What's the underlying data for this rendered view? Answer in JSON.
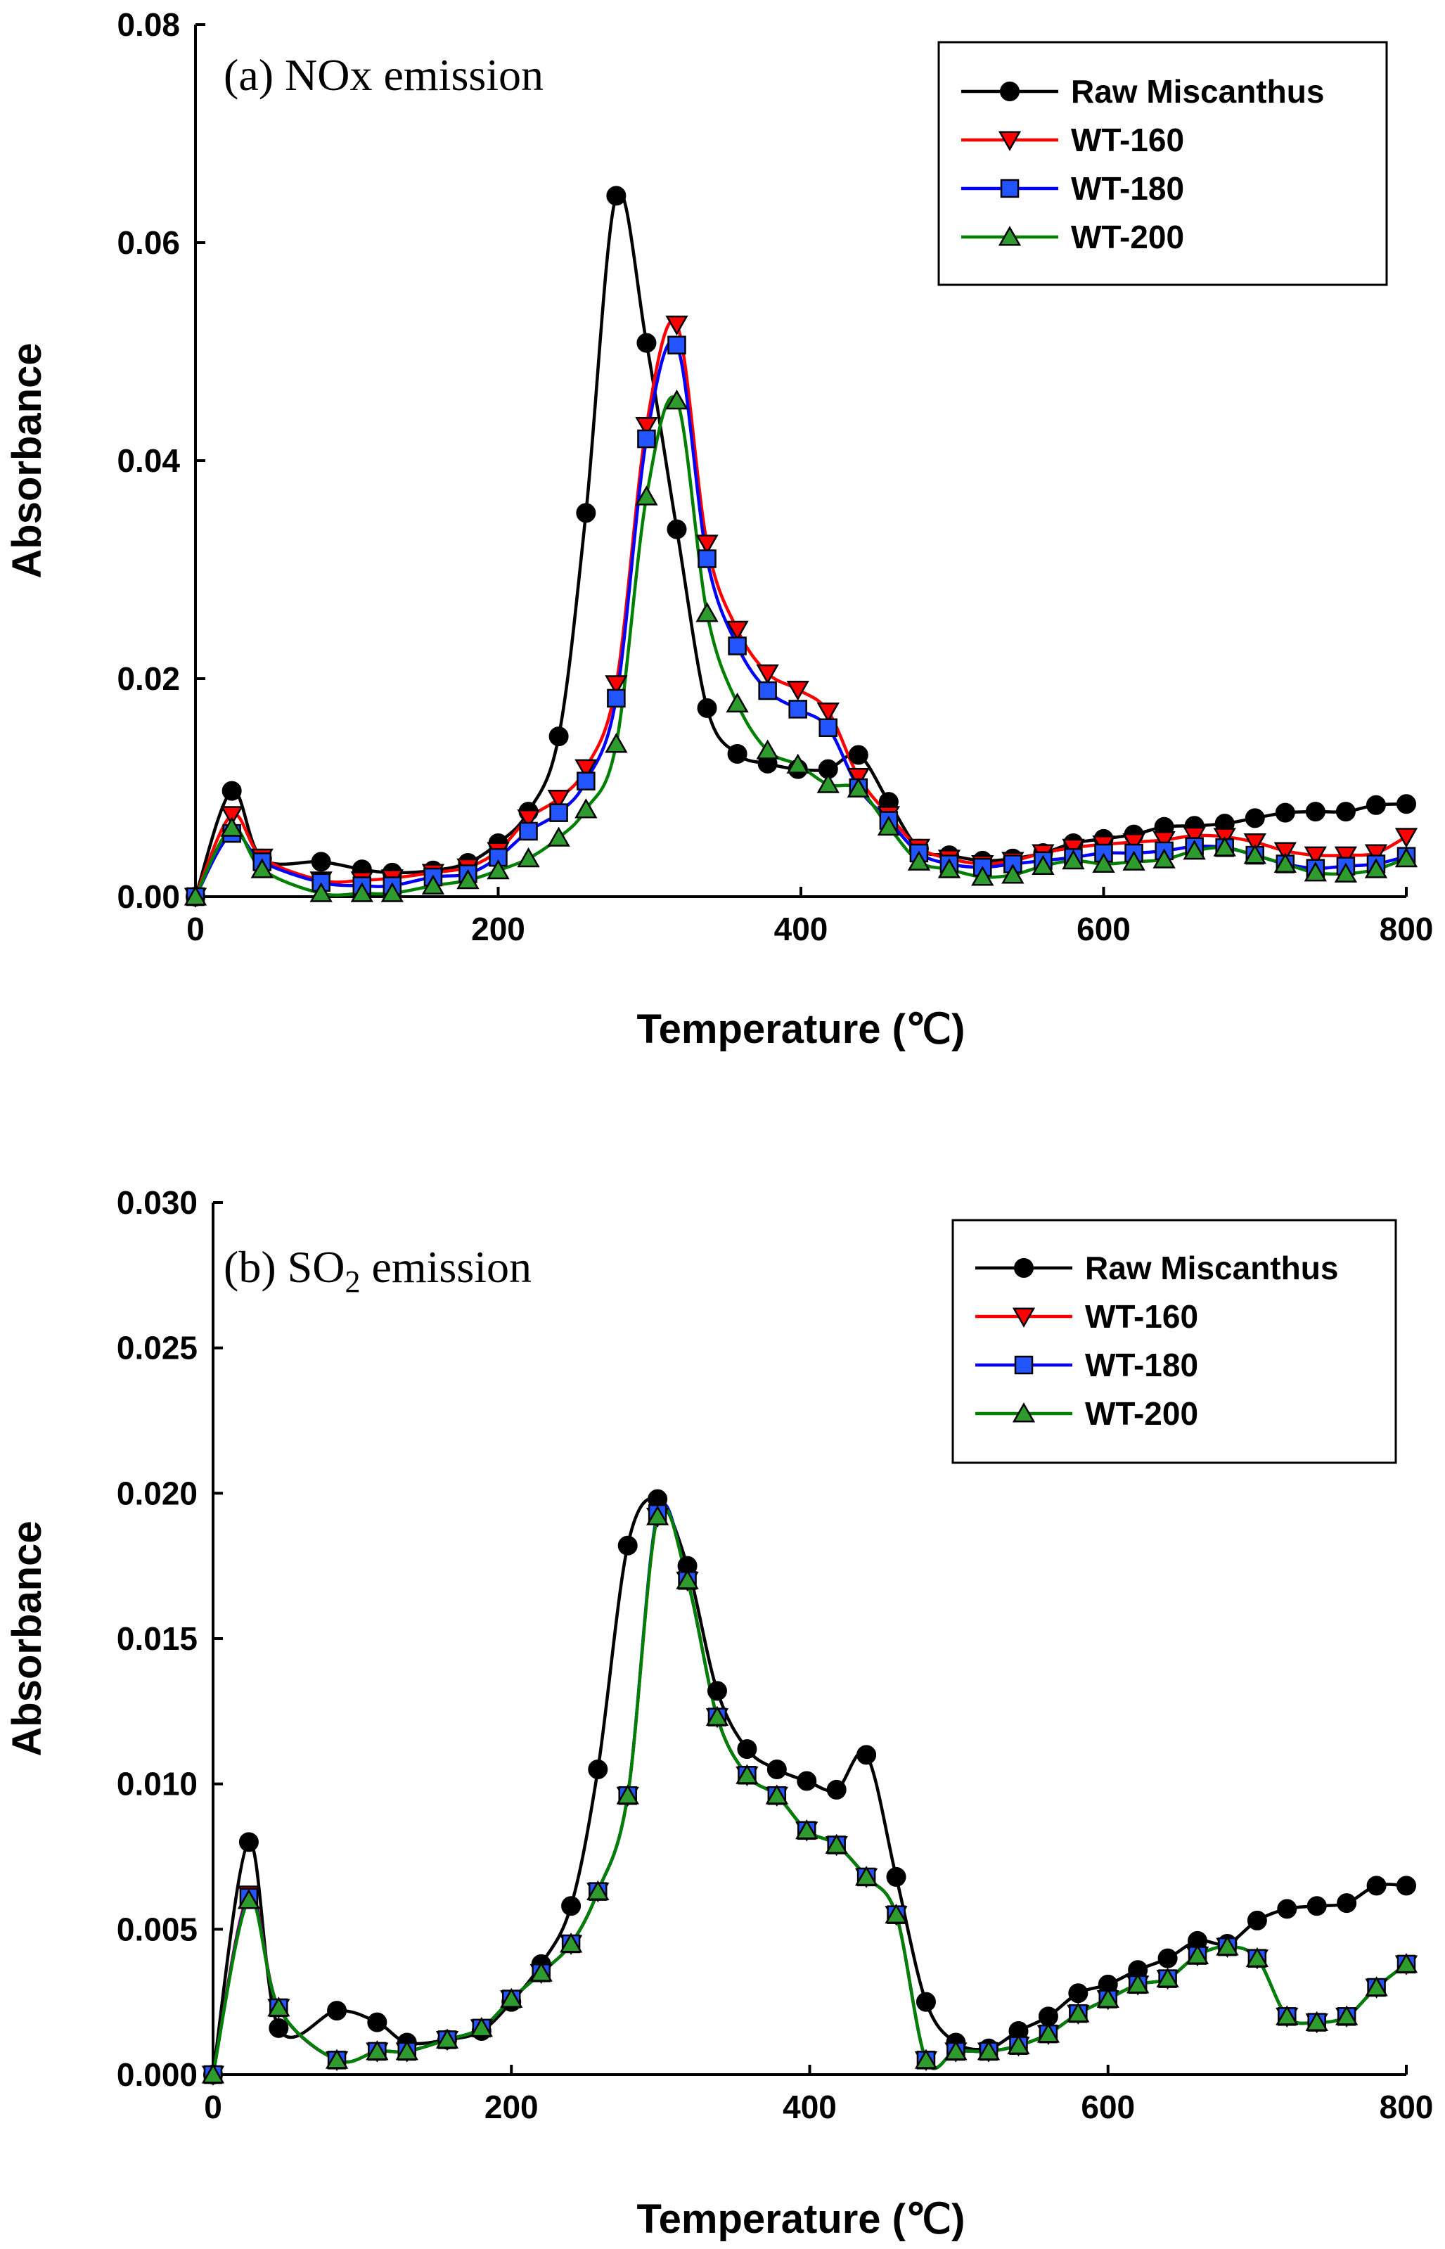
{
  "colors": {
    "raw": "#000000",
    "wt160": "#ff0000",
    "wt180": "#0000ff",
    "wt200": "#008000",
    "wt160_fill": "#ff0000",
    "wt180_fill": "#2255ff",
    "wt200_fill": "#2e9b2e"
  },
  "chart_data": [
    {
      "type": "line",
      "title": "(a) NOx emission",
      "title_parts": {
        "prefix": "(a) NOx emission",
        "sub": "",
        "suffix": ""
      },
      "xlabel": "Temperature (℃)",
      "ylabel": "Absorbance",
      "xlim": [
        0,
        800
      ],
      "ylim": [
        0,
        0.08
      ],
      "xticks": [
        0,
        200,
        400,
        600,
        800
      ],
      "xtick_labels": [
        "0",
        "200",
        "400",
        "600",
        "800"
      ],
      "yticks": [
        0,
        0.02,
        0.04,
        0.06,
        0.08
      ],
      "ytick_labels": [
        "0.00",
        "0.02",
        "0.04",
        "0.06",
        "0.08"
      ],
      "legend_position": "top-right",
      "series": [
        {
          "name": "Raw Miscanthus",
          "marker": "circle",
          "color_key": "raw",
          "x": [
            0,
            24,
            44,
            83,
            110,
            130,
            157,
            180,
            200,
            220,
            240,
            258,
            278,
            298,
            318,
            338,
            358,
            378,
            398,
            418,
            438,
            458,
            478,
            498,
            520,
            540,
            560,
            580,
            600,
            620,
            640,
            660,
            680,
            700,
            720,
            740,
            760,
            780,
            800
          ],
          "y": [
            0.0,
            0.0097,
            0.0035,
            0.0032,
            0.0025,
            0.0022,
            0.0024,
            0.0031,
            0.0049,
            0.0078,
            0.0147,
            0.0352,
            0.0643,
            0.0508,
            0.0337,
            0.0173,
            0.0131,
            0.0122,
            0.0117,
            0.0117,
            0.013,
            0.0087,
            0.0044,
            0.0038,
            0.0033,
            0.0035,
            0.004,
            0.0049,
            0.0053,
            0.0057,
            0.0064,
            0.0065,
            0.0067,
            0.0072,
            0.0077,
            0.0078,
            0.0078,
            0.0084,
            0.0085
          ]
        },
        {
          "name": "WT-160",
          "marker": "triangle-down",
          "color_key": "wt160",
          "x": [
            0,
            24,
            44,
            83,
            110,
            130,
            157,
            180,
            200,
            220,
            240,
            258,
            278,
            298,
            318,
            338,
            358,
            378,
            398,
            418,
            438,
            458,
            478,
            498,
            520,
            540,
            560,
            580,
            600,
            620,
            640,
            660,
            680,
            700,
            720,
            740,
            760,
            780,
            800
          ],
          "y": [
            0.0,
            0.0075,
            0.0036,
            0.0015,
            0.0015,
            0.0017,
            0.0022,
            0.0027,
            0.0042,
            0.0072,
            0.009,
            0.0118,
            0.0195,
            0.0432,
            0.0525,
            0.0324,
            0.0245,
            0.0205,
            0.019,
            0.017,
            0.011,
            0.0075,
            0.0045,
            0.0035,
            0.003,
            0.0033,
            0.004,
            0.0045,
            0.0048,
            0.005,
            0.0052,
            0.0056,
            0.0055,
            0.005,
            0.0042,
            0.0038,
            0.0038,
            0.004,
            0.0055
          ]
        },
        {
          "name": "WT-180",
          "marker": "square",
          "color_key": "wt180",
          "x": [
            0,
            24,
            44,
            83,
            110,
            130,
            157,
            180,
            200,
            220,
            240,
            258,
            278,
            298,
            318,
            338,
            358,
            378,
            398,
            418,
            438,
            458,
            478,
            498,
            520,
            540,
            560,
            580,
            600,
            620,
            640,
            660,
            680,
            700,
            720,
            740,
            760,
            780,
            800
          ],
          "y": [
            0.0,
            0.0058,
            0.0032,
            0.0013,
            0.001,
            0.001,
            0.0018,
            0.0021,
            0.0036,
            0.006,
            0.0077,
            0.0106,
            0.0182,
            0.042,
            0.0506,
            0.031,
            0.023,
            0.0189,
            0.0172,
            0.0155,
            0.01,
            0.007,
            0.004,
            0.003,
            0.0027,
            0.003,
            0.0033,
            0.0036,
            0.004,
            0.004,
            0.0042,
            0.0046,
            0.0045,
            0.0038,
            0.003,
            0.0026,
            0.0028,
            0.003,
            0.0037
          ]
        },
        {
          "name": "WT-200",
          "marker": "triangle-up",
          "color_key": "wt200",
          "x": [
            0,
            24,
            44,
            83,
            110,
            130,
            157,
            180,
            200,
            220,
            240,
            258,
            278,
            298,
            318,
            338,
            358,
            378,
            398,
            418,
            438,
            458,
            478,
            498,
            520,
            540,
            560,
            580,
            600,
            620,
            640,
            660,
            680,
            700,
            720,
            740,
            760,
            780,
            800
          ],
          "y": [
            0.0,
            0.0063,
            0.0025,
            0.0003,
            0.0003,
            0.0003,
            0.001,
            0.0015,
            0.0024,
            0.0035,
            0.0054,
            0.008,
            0.014,
            0.0367,
            0.0455,
            0.026,
            0.0177,
            0.0134,
            0.0121,
            0.0103,
            0.0099,
            0.0064,
            0.0032,
            0.0025,
            0.0018,
            0.002,
            0.0028,
            0.0033,
            0.003,
            0.0032,
            0.0034,
            0.0042,
            0.0045,
            0.0038,
            0.003,
            0.0022,
            0.0021,
            0.0025,
            0.0035
          ]
        }
      ]
    },
    {
      "type": "line",
      "title": "(b) SO2 emission",
      "title_parts": {
        "prefix": "(b) SO",
        "sub": "2",
        "suffix": " emission"
      },
      "xlabel": "Temperature (℃)",
      "ylabel": "Absorbance",
      "xlim": [
        0,
        800
      ],
      "ylim": [
        0,
        0.03
      ],
      "xticks": [
        0,
        200,
        400,
        600,
        800
      ],
      "xtick_labels": [
        "0",
        "200",
        "400",
        "600",
        "800"
      ],
      "yticks": [
        0,
        0.005,
        0.01,
        0.015,
        0.02,
        0.025,
        0.03
      ],
      "ytick_labels": [
        "0.000",
        "0.005",
        "0.010",
        "0.015",
        "0.020",
        "0.025",
        "0.030"
      ],
      "legend_position": "top-right",
      "series": [
        {
          "name": "Raw Miscanthus",
          "marker": "circle",
          "color_key": "raw",
          "x": [
            0,
            24,
            44,
            83,
            110,
            130,
            157,
            180,
            200,
            220,
            240,
            258,
            278,
            298,
            318,
            338,
            358,
            378,
            398,
            418,
            438,
            458,
            478,
            498,
            520,
            540,
            560,
            580,
            600,
            620,
            640,
            660,
            680,
            700,
            720,
            740,
            760,
            780,
            800
          ],
          "y": [
            0.0,
            0.008,
            0.0016,
            0.0022,
            0.0018,
            0.0011,
            0.0012,
            0.0015,
            0.0025,
            0.0038,
            0.0058,
            0.0105,
            0.0182,
            0.0198,
            0.0175,
            0.0132,
            0.0112,
            0.0105,
            0.0101,
            0.0098,
            0.011,
            0.0068,
            0.0025,
            0.0011,
            0.0009,
            0.0015,
            0.002,
            0.0028,
            0.0031,
            0.0036,
            0.004,
            0.0046,
            0.0045,
            0.0053,
            0.0057,
            0.0058,
            0.0059,
            0.0065,
            0.0065
          ]
        },
        {
          "name": "WT-160",
          "marker": "triangle-down",
          "color_key": "wt160",
          "x": [
            0,
            24,
            44,
            83,
            110,
            130,
            157,
            180,
            200,
            220,
            240,
            258,
            278,
            298,
            318,
            338,
            358,
            378,
            398,
            418,
            438,
            458,
            478,
            498,
            520,
            540,
            560,
            580,
            600,
            620,
            640,
            660,
            680,
            700,
            720,
            740,
            760,
            780,
            800
          ],
          "y": [
            0.0,
            0.0062,
            0.0023,
            0.0005,
            0.0008,
            0.0008,
            0.0012,
            0.0016,
            0.0026,
            0.0035,
            0.0045,
            0.0063,
            0.0096,
            0.0192,
            0.017,
            0.0123,
            0.0103,
            0.0096,
            0.0084,
            0.0079,
            0.0068,
            0.0055,
            0.0005,
            0.0008,
            0.0008,
            0.001,
            0.0014,
            0.0021,
            0.0026,
            0.0031,
            0.0033,
            0.0041,
            0.0044,
            0.004,
            0.002,
            0.0018,
            0.002,
            0.003,
            0.0038
          ]
        },
        {
          "name": "WT-180",
          "marker": "square",
          "color_key": "wt180",
          "x": [
            0,
            24,
            44,
            83,
            110,
            130,
            157,
            180,
            200,
            220,
            240,
            258,
            278,
            298,
            318,
            338,
            358,
            378,
            398,
            418,
            438,
            458,
            478,
            498,
            520,
            540,
            560,
            580,
            600,
            620,
            640,
            660,
            680,
            700,
            720,
            740,
            760,
            780,
            800
          ],
          "y": [
            0.0,
            0.0061,
            0.0023,
            0.0005,
            0.0008,
            0.0008,
            0.0012,
            0.0016,
            0.0026,
            0.0035,
            0.0045,
            0.0063,
            0.0096,
            0.0193,
            0.017,
            0.0123,
            0.0103,
            0.0096,
            0.0084,
            0.0079,
            0.0068,
            0.0055,
            0.0005,
            0.0008,
            0.0008,
            0.001,
            0.0014,
            0.0021,
            0.0026,
            0.0031,
            0.0033,
            0.0041,
            0.0044,
            0.004,
            0.002,
            0.0018,
            0.002,
            0.003,
            0.0038
          ]
        },
        {
          "name": "WT-200",
          "marker": "triangle-up",
          "color_key": "wt200",
          "x": [
            0,
            24,
            44,
            83,
            110,
            130,
            157,
            180,
            200,
            220,
            240,
            258,
            278,
            298,
            318,
            338,
            358,
            378,
            398,
            418,
            438,
            458,
            478,
            498,
            520,
            540,
            560,
            580,
            600,
            620,
            640,
            660,
            680,
            700,
            720,
            740,
            760,
            780,
            800
          ],
          "y": [
            0.0,
            0.006,
            0.0023,
            0.0005,
            0.0008,
            0.0008,
            0.0012,
            0.0016,
            0.0026,
            0.0035,
            0.0045,
            0.0063,
            0.0096,
            0.0192,
            0.017,
            0.0123,
            0.0103,
            0.0096,
            0.0084,
            0.0079,
            0.0068,
            0.0055,
            0.0005,
            0.0008,
            0.0008,
            0.001,
            0.0014,
            0.0021,
            0.0026,
            0.0031,
            0.0033,
            0.0041,
            0.0044,
            0.004,
            0.002,
            0.0018,
            0.002,
            0.003,
            0.0038
          ]
        }
      ]
    }
  ]
}
